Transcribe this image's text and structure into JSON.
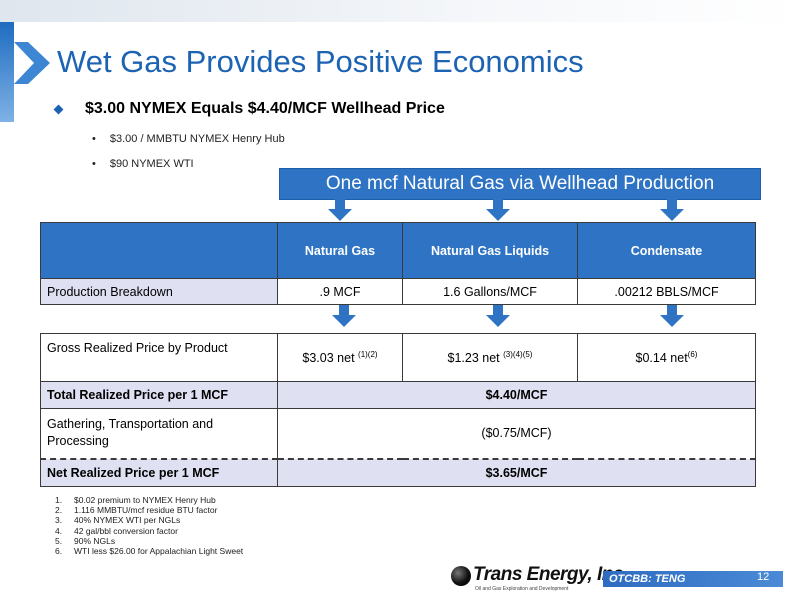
{
  "slide": {
    "title": "Wet Gas Provides Positive Economics",
    "main_bullet": "$3.00 NYMEX Equals $4.40/MCF Wellhead Price",
    "sub_bullets": [
      "$3.00 / MMBTU NYMEX Henry Hub",
      "$90 NYMEX WTI"
    ],
    "banner": "One mcf Natural Gas via Wellhead Production",
    "accent_color": "#1c63b3",
    "header_fill": "#2f74c4",
    "row_fill": "#dfe1f2"
  },
  "table1": {
    "headers": [
      "",
      "Natural Gas",
      "Natural Gas Liquids",
      "Condensate"
    ],
    "row": {
      "label": "Production Breakdown",
      "values": [
        ".9 MCF",
        "1.6 Gallons/MCF",
        ".00212 BBLS/MCF"
      ]
    }
  },
  "table2": {
    "gross": {
      "label": "Gross Realized Price by Product",
      "values": [
        "$3.03 net",
        "$1.23 net",
        "$0.14 net"
      ],
      "refs": [
        "(1)(2)",
        "(3)(4)(5)",
        "(6)"
      ]
    },
    "total": {
      "label": "Total Realized Price per 1 MCF",
      "value": "$4.40/MCF"
    },
    "gathering": {
      "label": "Gathering, Transportation and Processing",
      "value": "($0.75/MCF)"
    },
    "net": {
      "label": "Net Realized Price per 1 MCF",
      "value": "$3.65/MCF"
    }
  },
  "footnotes": [
    {
      "num": "1.",
      "text": "$0.02 premium to NYMEX Henry Hub"
    },
    {
      "num": "2.",
      "text": "1.116 MMBTU/mcf residue BTU factor"
    },
    {
      "num": "3.",
      "text": "40% NYMEX WTI per NGLs"
    },
    {
      "num": "4.",
      "text": "42 gal/bbl conversion factor"
    },
    {
      "num": "5.",
      "text": "90% NGLs"
    },
    {
      "num": "6.",
      "text": "WTI less $26.00 for Appalachian Light Sweet"
    }
  ],
  "footer": {
    "logo_name": "Trans Energy, Inc.",
    "logo_tagline": "Oil and Gas Exploration and Development",
    "ticker": "OTCBB: TENG",
    "page_number": "12"
  }
}
